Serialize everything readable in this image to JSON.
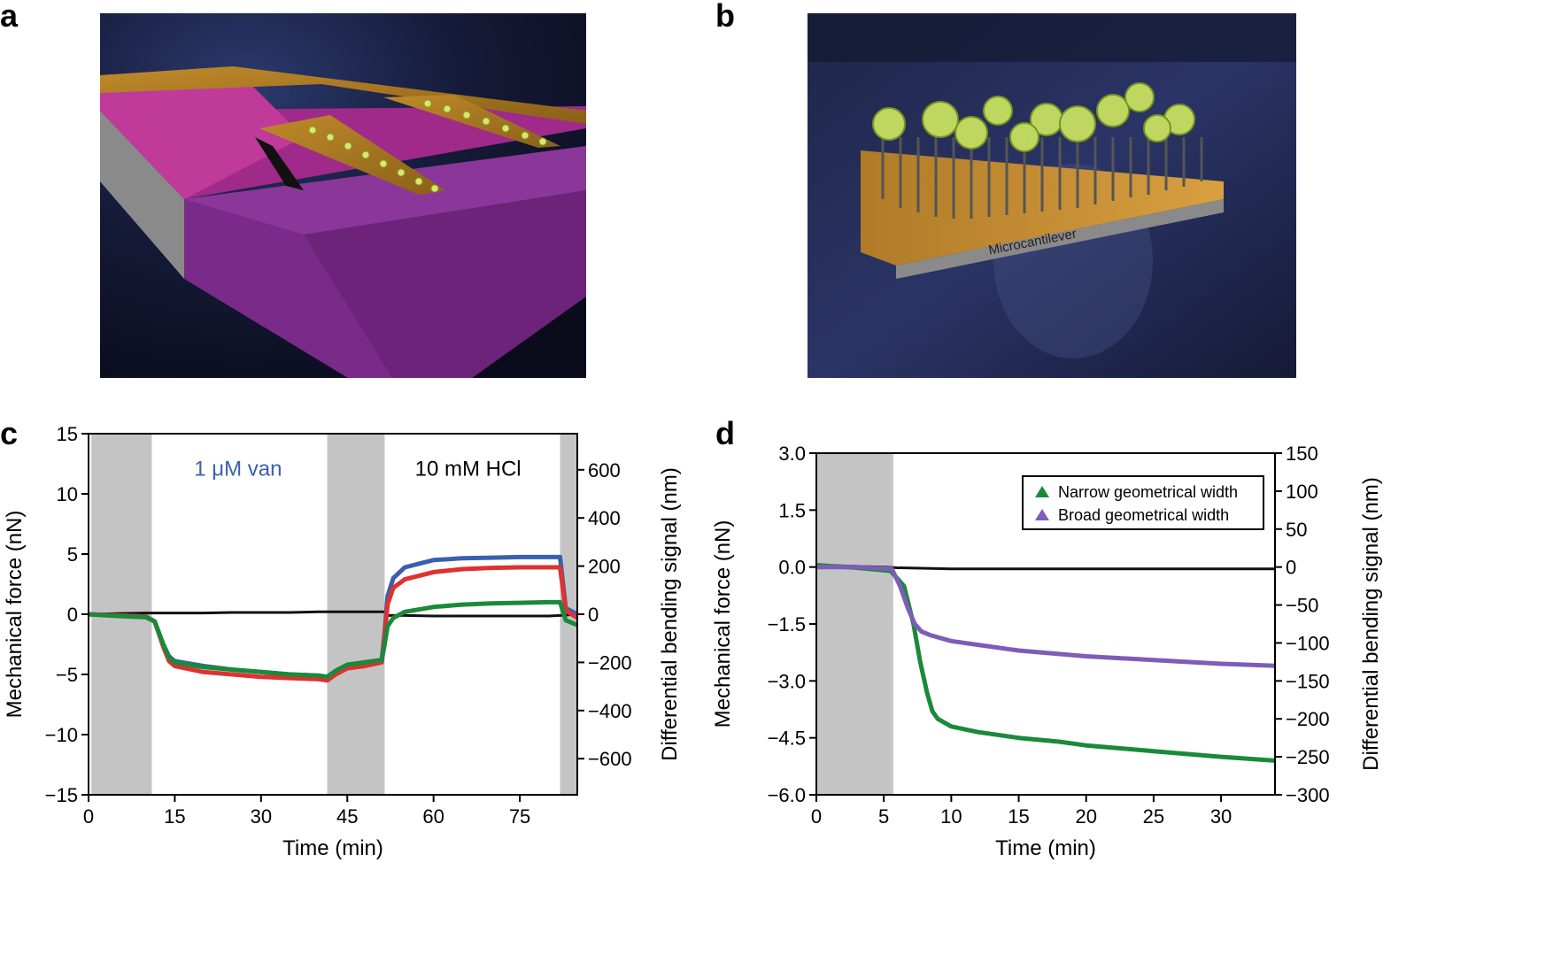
{
  "panels": {
    "a": {
      "letter": "a"
    },
    "b": {
      "letter": "b",
      "cantilever_label": "Microcantilever"
    },
    "c": {
      "letter": "c"
    },
    "d": {
      "letter": "d"
    }
  },
  "colors": {
    "black_ref": "#111111",
    "blue": "#3a5fb0",
    "red": "#e03030",
    "green": "#1a8a3a",
    "purple": "#7e5cb8",
    "shade": "#c4c4c4"
  },
  "chart_data": [
    {
      "id": "c",
      "type": "line",
      "title": "",
      "xlabel": "Time (min)",
      "ylabel": "Mechanical force (nN)",
      "y2label": "Differential bending signal (nm)",
      "xlim": [
        0,
        85
      ],
      "ylim": [
        -15,
        15
      ],
      "y2lim": [
        -750,
        750
      ],
      "xticks": [
        0,
        15,
        30,
        45,
        60,
        75
      ],
      "yticks": [
        -15,
        -10,
        -5,
        0,
        5,
        10,
        15
      ],
      "y2ticks": [
        -600,
        -400,
        -200,
        0,
        200,
        400,
        600
      ],
      "xtick_labels": [
        "0",
        "15",
        "30",
        "45",
        "60",
        "75"
      ],
      "ytick_labels": [
        "−15",
        "−10",
        "−5",
        "0",
        "5",
        "10",
        "15"
      ],
      "y2tick_labels": [
        "−600",
        "−400",
        "−200",
        "0",
        "200",
        "400",
        "600"
      ],
      "shaded": [
        [
          0.5,
          11
        ],
        [
          41.5,
          51.5
        ],
        [
          82,
          85
        ]
      ],
      "annotations": [
        {
          "text": "1 μM van",
          "x": 26,
          "y": 11.5,
          "color": "#3a5fb0"
        },
        {
          "text": "10 mM HCl",
          "x": 66,
          "y": 11.5,
          "color": "#000000"
        }
      ],
      "series": [
        {
          "name": "reference",
          "color": "#111111",
          "x": [
            0,
            5,
            10,
            15,
            20,
            25,
            30,
            35,
            40,
            45,
            50,
            51.5,
            52,
            55,
            60,
            65,
            70,
            75,
            80,
            82,
            85
          ],
          "y": [
            0,
            0.05,
            0.1,
            0.1,
            0.1,
            0.15,
            0.15,
            0.15,
            0.2,
            0.2,
            0.2,
            0.2,
            -0.1,
            -0.1,
            -0.15,
            -0.15,
            -0.15,
            -0.15,
            -0.15,
            -0.1,
            0
          ]
        },
        {
          "name": "blue",
          "color": "#3a5fb0",
          "x": [
            0,
            5,
            10,
            11.5,
            13,
            14,
            15,
            20,
            25,
            30,
            35,
            40,
            41.5,
            43,
            45,
            48,
            51,
            51.5,
            52,
            53,
            55,
            60,
            65,
            70,
            75,
            80,
            82,
            83,
            85
          ],
          "y": [
            0,
            -0.1,
            -0.2,
            -0.6,
            -2.5,
            -3.5,
            -3.9,
            -4.3,
            -4.6,
            -4.8,
            -5.0,
            -5.1,
            -5.2,
            -4.7,
            -4.2,
            -4.0,
            -3.8,
            -1.5,
            1.5,
            3.0,
            3.9,
            4.5,
            4.65,
            4.7,
            4.75,
            4.75,
            4.75,
            0.5,
            0
          ]
        },
        {
          "name": "red",
          "color": "#e03030",
          "x": [
            0,
            5,
            10,
            11.5,
            13,
            14,
            15,
            20,
            25,
            30,
            35,
            40,
            41.5,
            43,
            45,
            48,
            51,
            51.5,
            52,
            53,
            55,
            60,
            65,
            70,
            75,
            80,
            82,
            83,
            85
          ],
          "y": [
            0,
            -0.1,
            -0.2,
            -0.6,
            -2.7,
            -3.9,
            -4.3,
            -4.8,
            -5.0,
            -5.2,
            -5.3,
            -5.4,
            -5.5,
            -5.0,
            -4.5,
            -4.3,
            -4.0,
            -1.8,
            0.8,
            2.2,
            2.9,
            3.5,
            3.75,
            3.85,
            3.9,
            3.9,
            3.9,
            0.3,
            -0.3
          ]
        },
        {
          "name": "green",
          "color": "#1a8a3a",
          "x": [
            0,
            5,
            10,
            11.5,
            13,
            14,
            15,
            20,
            25,
            30,
            35,
            40,
            41.5,
            43,
            45,
            48,
            51,
            51.5,
            52,
            53,
            55,
            60,
            65,
            70,
            75,
            80,
            82,
            83,
            85
          ],
          "y": [
            0,
            -0.15,
            -0.25,
            -0.6,
            -2.5,
            -3.6,
            -4.0,
            -4.4,
            -4.6,
            -4.8,
            -5.0,
            -5.1,
            -5.2,
            -4.7,
            -4.2,
            -4.0,
            -3.8,
            -2.5,
            -1.0,
            -0.3,
            0.2,
            0.6,
            0.8,
            0.9,
            0.95,
            1.0,
            1.0,
            -0.5,
            -0.9
          ]
        }
      ]
    },
    {
      "id": "d",
      "type": "line",
      "title": "",
      "xlabel": "Time (min)",
      "ylabel": "Mechanical force (nN)",
      "y2label": "Differential bending signal (nm)",
      "xlim": [
        0,
        34
      ],
      "ylim": [
        -6.0,
        3.0
      ],
      "y2lim": [
        -300,
        150
      ],
      "xticks": [
        0,
        5,
        10,
        15,
        20,
        25,
        30
      ],
      "yticks": [
        -6.0,
        -4.5,
        -3.0,
        -1.5,
        0.0,
        1.5,
        3.0
      ],
      "y2ticks": [
        -300,
        -250,
        -200,
        -150,
        -100,
        -50,
        0,
        50,
        100,
        150
      ],
      "xtick_labels": [
        "0",
        "5",
        "10",
        "15",
        "20",
        "25",
        "30"
      ],
      "ytick_labels": [
        "−6.0",
        "−4.5",
        "−3.0",
        "−1.5",
        "0.0",
        "1.5",
        "3.0"
      ],
      "y2tick_labels": [
        "−300",
        "−250",
        "−200",
        "−150",
        "−100",
        "−50",
        "0",
        "50",
        "100",
        "150"
      ],
      "shaded": [
        [
          0,
          5.7
        ]
      ],
      "legend_position": "top-right",
      "legend": [
        "Narrow geometrical width",
        "Broad geometrical width"
      ],
      "series": [
        {
          "name": "reference",
          "color": "#111111",
          "x": [
            0,
            5,
            6,
            10,
            15,
            20,
            25,
            30,
            34
          ],
          "y": [
            0.05,
            0.0,
            -0.02,
            -0.05,
            -0.05,
            -0.05,
            -0.05,
            -0.05,
            -0.05
          ]
        },
        {
          "name": "Narrow geometrical width",
          "color": "#1a8a3a",
          "x": [
            0,
            3,
            5.5,
            6.5,
            7.2,
            7.7,
            8.2,
            8.6,
            9.0,
            10,
            12,
            15,
            18,
            20,
            25,
            30,
            34
          ],
          "y": [
            0.05,
            -0.02,
            -0.1,
            -0.5,
            -1.5,
            -2.5,
            -3.3,
            -3.8,
            -4.0,
            -4.2,
            -4.35,
            -4.5,
            -4.6,
            -4.7,
            -4.85,
            -5.0,
            -5.1
          ]
        },
        {
          "name": "Broad geometrical width",
          "color": "#7e5cb8",
          "x": [
            0,
            3,
            5.6,
            6.2,
            6.8,
            7.3,
            7.8,
            8.5,
            10,
            12,
            15,
            20,
            25,
            30,
            34
          ],
          "y": [
            0.0,
            0.0,
            -0.05,
            -0.5,
            -1.1,
            -1.5,
            -1.7,
            -1.8,
            -1.95,
            -2.05,
            -2.2,
            -2.35,
            -2.45,
            -2.55,
            -2.6
          ]
        }
      ]
    }
  ]
}
